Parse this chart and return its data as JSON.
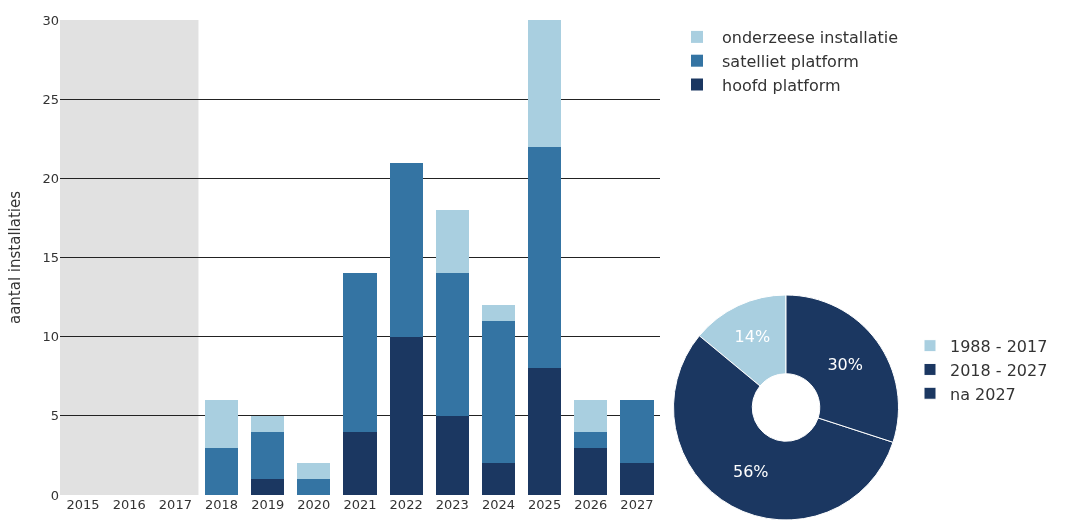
{
  "chart_data": [
    {
      "type": "bar",
      "stacked": true,
      "ylabel": "aantal installaties",
      "categories": [
        "2015",
        "2016",
        "2017",
        "2018",
        "2019",
        "2020",
        "2021",
        "2022",
        "2023",
        "2024",
        "2025",
        "2026",
        "2027"
      ],
      "series": [
        {
          "name": "hoofd platform",
          "color": "#1b3761",
          "values": [
            0,
            0,
            0,
            0,
            1,
            0,
            4,
            10,
            5,
            2,
            8,
            3,
            2
          ]
        },
        {
          "name": "satelliet platform",
          "color": "#3474a3",
          "values": [
            0,
            0,
            0,
            3,
            3,
            1,
            10,
            11,
            9,
            9,
            14,
            1,
            4
          ]
        },
        {
          "name": "onderzeese installatie",
          "color": "#a9cfe0",
          "values": [
            0,
            0,
            0,
            3,
            1,
            1,
            0,
            0,
            4,
            1,
            8,
            2,
            0
          ]
        }
      ],
      "ylim": [
        0,
        30
      ],
      "yticks": [
        0,
        5,
        10,
        15,
        20,
        25,
        30
      ],
      "grid": "y",
      "legend": "top right",
      "bands": [
        {
          "axis": "x",
          "from": "2015",
          "to": "2017",
          "color": "#d4d4d4"
        }
      ]
    },
    {
      "type": "donut",
      "categories": [
        "1988 - 2017",
        "2018 - 2027",
        "na 2027"
      ],
      "values": [
        14,
        56,
        30
      ],
      "colors": [
        "#a9cfe0",
        "#1b3761",
        "#1b3761"
      ],
      "value_labels": [
        "14%",
        "56%",
        "30%"
      ],
      "legend": "right"
    }
  ]
}
